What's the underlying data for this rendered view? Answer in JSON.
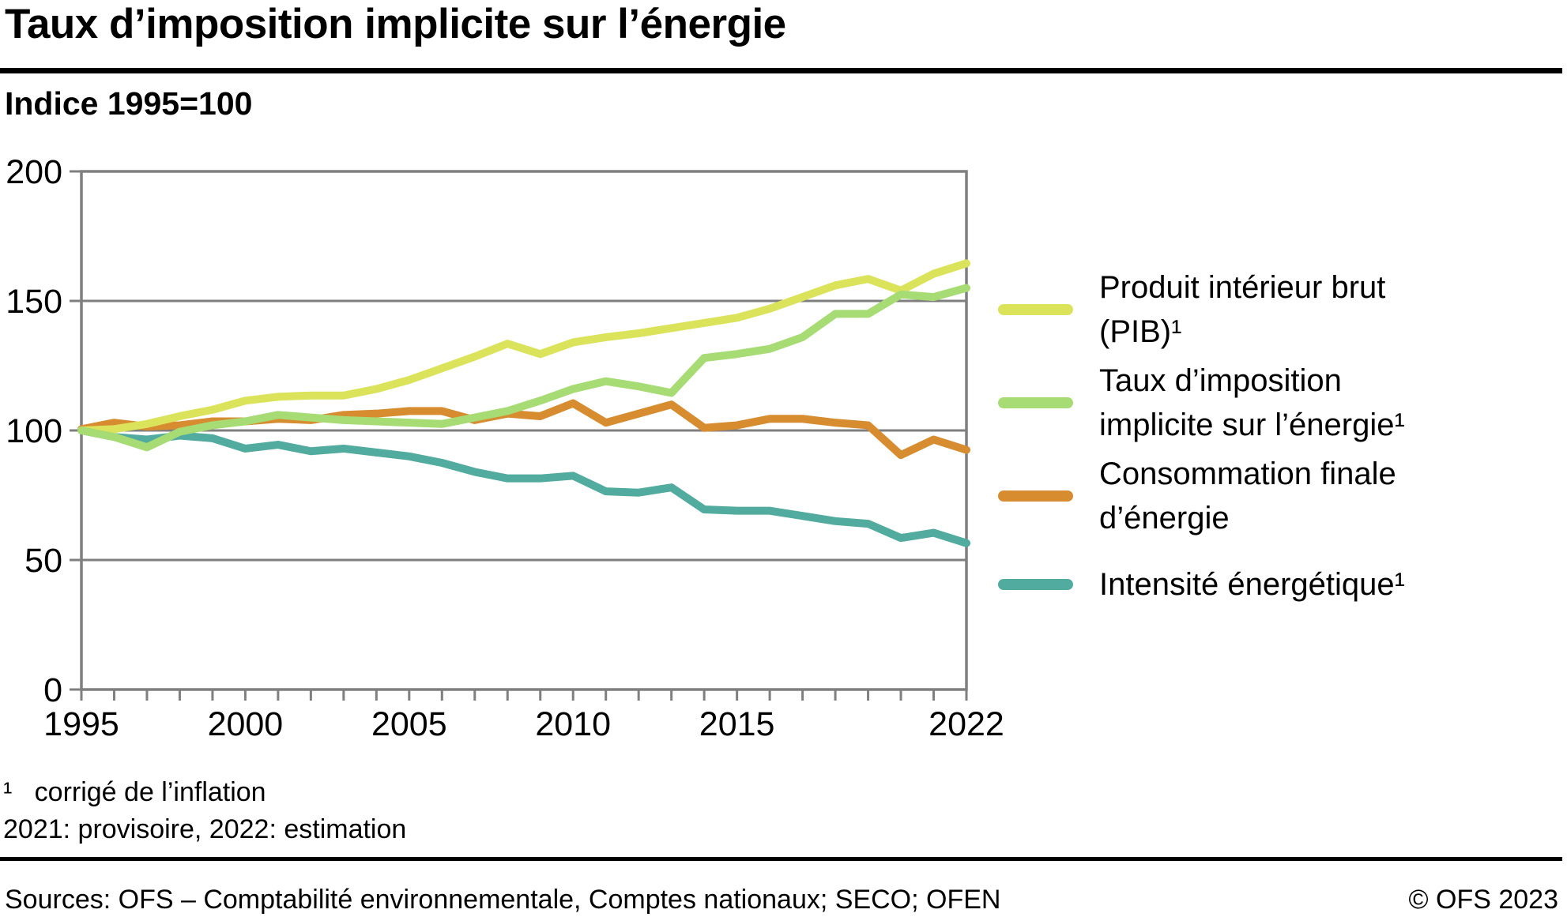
{
  "header": {
    "title": "Taux d’imposition implicite sur l’énergie",
    "subtitle": "Indice 1995=100"
  },
  "chart_data": {
    "type": "line",
    "title": "Taux d’imposition implicite sur l’énergie",
    "index_note": "Indice 1995=100",
    "x": [
      1995,
      1996,
      1997,
      1998,
      1999,
      2000,
      2001,
      2002,
      2003,
      2004,
      2005,
      2006,
      2007,
      2008,
      2009,
      2010,
      2011,
      2012,
      2013,
      2014,
      2015,
      2016,
      2017,
      2018,
      2019,
      2020,
      2021,
      2022
    ],
    "x_tick_labels": [
      1995,
      2000,
      2005,
      2010,
      2015,
      2022
    ],
    "y_ticks": [
      0,
      50,
      100,
      150,
      200
    ],
    "ylim": [
      0,
      200
    ],
    "grid": "horizontal",
    "legend_position": "right",
    "series": [
      {
        "name": "Produit intérieur brut\n(PIB)¹",
        "color": "#dbe35b",
        "values": [
          100,
          100.5,
          102.5,
          105.5,
          108,
          111.5,
          113,
          113.5,
          113.5,
          116,
          119.5,
          124,
          128.5,
          133.5,
          129.5,
          134,
          136,
          137.5,
          139.5,
          141.5,
          143.5,
          147,
          151.5,
          156,
          158.5,
          154,
          160.5,
          164.5
        ]
      },
      {
        "name": "Taux d’imposition\nimplicite sur l’énergie¹",
        "color": "#a7db74",
        "values": [
          100,
          97.5,
          93.5,
          99.5,
          102,
          103.5,
          106,
          105,
          104,
          103.5,
          103,
          102.5,
          105,
          107.5,
          111.5,
          116,
          119,
          117,
          114.5,
          128,
          129.5,
          131.5,
          136,
          145,
          145,
          152.5,
          151.5,
          155
        ]
      },
      {
        "name": "Consommation finale\nd’énergie",
        "color": "#d88c30",
        "values": [
          100.5,
          103,
          101.5,
          102,
          103.5,
          103.5,
          104.5,
          104,
          106,
          106.5,
          107.5,
          107.5,
          104,
          106.5,
          105.5,
          110.5,
          103,
          106.5,
          110,
          101,
          102,
          104.5,
          104.5,
          103,
          102,
          90.5,
          96.5,
          92.5
        ]
      },
      {
        "name": "Intensité énergétique¹",
        "color": "#51ab9e",
        "values": [
          100,
          97.5,
          96.5,
          98,
          97,
          93,
          94.5,
          92,
          93,
          91.5,
          90,
          87.5,
          84,
          81.5,
          81.5,
          82.5,
          76.5,
          76,
          78,
          69.5,
          69,
          69,
          67,
          65,
          64,
          58.5,
          60.5,
          56.5
        ]
      }
    ]
  },
  "footnotes": [
    "¹   corrigé de l’inflation",
    "2021: provisoire, 2022: estimation"
  ],
  "footer": {
    "sources": "Sources: OFS – Comptabilité environnementale, Comptes nationaux; SECO; OFEN",
    "copyright": "© OFS 2023"
  },
  "style": {
    "axis_color": "#7f7f7f",
    "text_color": "#000000",
    "line_width": 10
  }
}
